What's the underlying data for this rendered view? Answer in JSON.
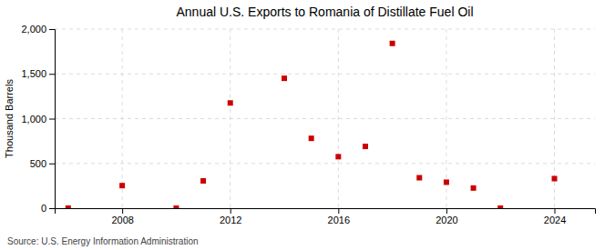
{
  "chart_data": {
    "type": "scatter",
    "title": "Annual U.S. Exports to Romania of Distillate Fuel Oil",
    "ylabel": "Thousand Barrels",
    "annotations": [
      "Source: U.S. Energy Information Administration"
    ],
    "x": [
      2006,
      2008,
      2010,
      2011,
      2012,
      2014,
      2015,
      2016,
      2017,
      2018,
      2019,
      2020,
      2021,
      2022,
      2024
    ],
    "values": [
      0,
      252,
      0,
      305,
      1175,
      1450,
      780,
      575,
      690,
      1840,
      340,
      290,
      225,
      0,
      330
    ],
    "color": "#cc0000",
    "marker": "square",
    "xlim": [
      2005.5,
      2025.5
    ],
    "ylim": [
      0,
      2000
    ],
    "xticks": [
      2008,
      2012,
      2016,
      2020,
      2024
    ],
    "yticks": [
      0,
      500,
      {
        "value": 1000,
        "label": "1,000"
      },
      {
        "value": 1500,
        "label": "1,500"
      },
      {
        "value": 2000,
        "label": "2,000"
      }
    ],
    "grid": true
  }
}
